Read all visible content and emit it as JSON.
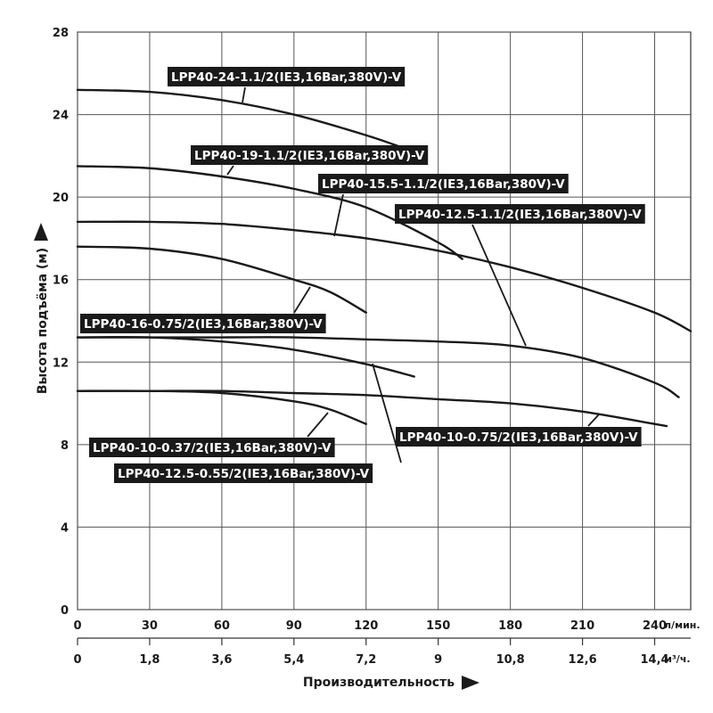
{
  "chart_data": {
    "type": "line",
    "ylabel": "Высота подъёма (м)",
    "xlabel": "Производительность",
    "ylim": [
      0,
      28
    ],
    "y_ticks": [
      "0",
      "4",
      "8",
      "12",
      "16",
      "20",
      "24",
      "28"
    ],
    "x_primary": {
      "unit": "л/мин.",
      "range": [
        0,
        255
      ],
      "ticks": [
        "0",
        "30",
        "60",
        "90",
        "120",
        "150",
        "180",
        "210",
        "240"
      ]
    },
    "x_secondary": {
      "unit": "м³/ч.",
      "ticks": [
        "0",
        "1,8",
        "3,6",
        "5,4",
        "7,2",
        "9",
        "10,8",
        "12,6",
        "14,4"
      ]
    },
    "grid": true,
    "series": [
      {
        "name": "LPP40-24-1.1/2(IE3,16Bar,380V)-V",
        "x": [
          0,
          30,
          60,
          90,
          120,
          135
        ],
        "y": [
          25.2,
          25.1,
          24.7,
          24.0,
          23.0,
          22.4
        ]
      },
      {
        "name": "LPP40-19-1.1/2(IE3,16Bar,380V)-V",
        "x": [
          0,
          30,
          60,
          90,
          120,
          150,
          160
        ],
        "y": [
          21.5,
          21.4,
          21.0,
          20.4,
          19.5,
          17.8,
          17.0
        ]
      },
      {
        "name": "LPP40-15.5-1.1/2(IE3,16Bar,380V)-V",
        "x": [
          0,
          30,
          60,
          90,
          120,
          150,
          180,
          210,
          240,
          255
        ],
        "y": [
          18.8,
          18.8,
          18.7,
          18.4,
          18.0,
          17.4,
          16.6,
          15.6,
          14.4,
          13.5
        ]
      },
      {
        "name": "LPP40-16-0.75/2(IE3,16Bar,380V)-V",
        "x": [
          0,
          30,
          60,
          90,
          105,
          120
        ],
        "y": [
          17.6,
          17.5,
          17.0,
          16.0,
          15.4,
          14.4
        ]
      },
      {
        "name": "LPP40-12.5-1.1/2(IE3,16Bar,380V)-V",
        "x": [
          0,
          30,
          60,
          90,
          120,
          150,
          180,
          210,
          240,
          250
        ],
        "y": [
          13.2,
          13.2,
          13.2,
          13.2,
          13.1,
          13.0,
          12.8,
          12.2,
          11.0,
          10.3
        ]
      },
      {
        "name": "LPP40-12.5-0.55/2(IE3,16Bar,380V)-V",
        "x": [
          0,
          30,
          60,
          90,
          120,
          140
        ],
        "y": [
          13.2,
          13.2,
          13.0,
          12.6,
          11.9,
          11.3
        ]
      },
      {
        "name": "LPP40-10-0.75/2(IE3,16Bar,380V)-V",
        "x": [
          0,
          30,
          60,
          90,
          120,
          150,
          180,
          210,
          240,
          245
        ],
        "y": [
          10.6,
          10.6,
          10.6,
          10.5,
          10.4,
          10.2,
          10.0,
          9.6,
          9.0,
          8.9
        ]
      },
      {
        "name": "LPP40-10-0.37/2(IE3,16Bar,380V)-V",
        "x": [
          0,
          30,
          60,
          90,
          105,
          120
        ],
        "y": [
          10.6,
          10.6,
          10.5,
          10.1,
          9.7,
          9.0
        ]
      }
    ]
  }
}
